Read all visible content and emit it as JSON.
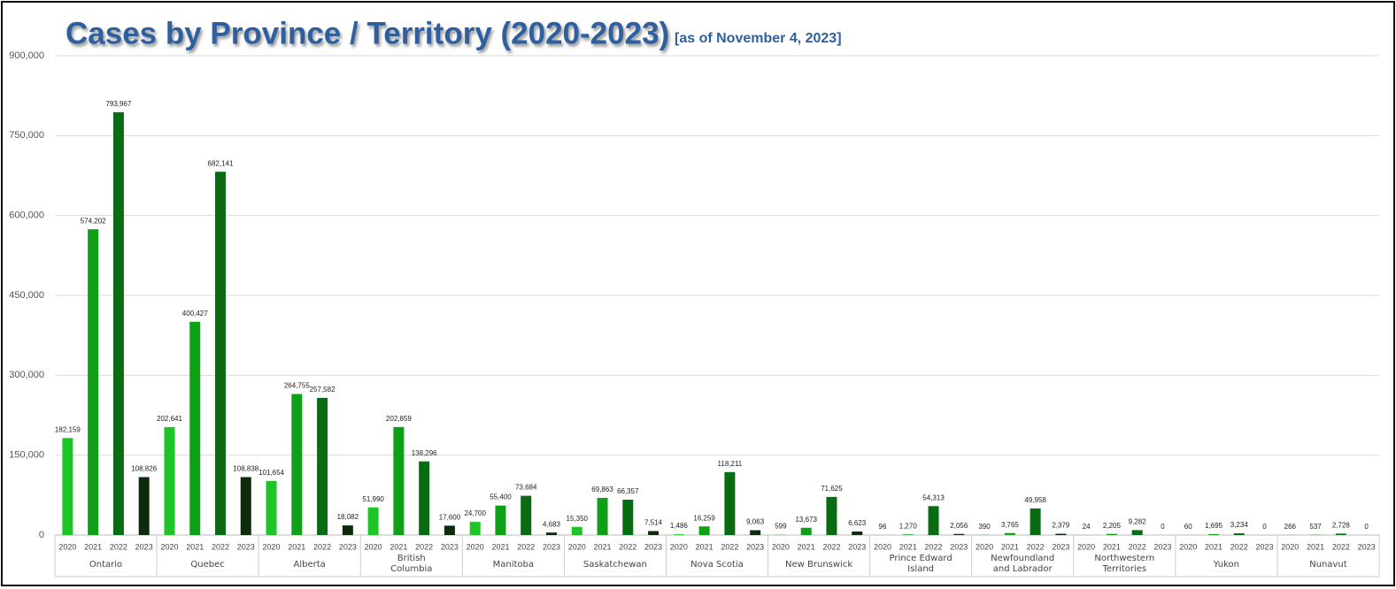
{
  "chart_data": {
    "type": "bar",
    "title": "Cases by Province / Territory (2020-2023)",
    "subtitle": "[as of November 4, 2023]",
    "categories": [
      "Ontario",
      "Quebec",
      "Alberta",
      "British Columbia",
      "Manitoba",
      "Saskatchewan",
      "Nova Scotia",
      "New Brunswick",
      "Prince Edward Island",
      "Newfoundland and Labrador",
      "Northwestern Territories",
      "Yukon",
      "Nunavut"
    ],
    "series": [
      {
        "name": "2020",
        "color": "#1fc428",
        "values": [
          182159,
          202641,
          101654,
          51990,
          24700,
          15350,
          1486,
          599,
          96,
          390,
          24,
          60,
          266
        ],
        "value_labels": [
          "182,159",
          "202,641",
          "101,654",
          "51,990",
          "24,700",
          "15,350",
          "1,486",
          "599",
          "96",
          "390",
          "24",
          "60",
          "266"
        ]
      },
      {
        "name": "2021",
        "color": "#10a018",
        "values": [
          574202,
          400427,
          264755,
          202859,
          55400,
          69863,
          16259,
          13673,
          1270,
          3765,
          2205,
          1695,
          537
        ],
        "value_labels": [
          "574,202",
          "400,427",
          "264,755",
          "202,859",
          "55,400",
          "69,863",
          "16,259",
          "13,673",
          "1,270",
          "3,765",
          "2,205",
          "1,695",
          "537"
        ]
      },
      {
        "name": "2022",
        "color": "#0a6c12",
        "values": [
          793967,
          682141,
          257582,
          138296,
          73684,
          66357,
          118211,
          71625,
          54313,
          49958,
          9282,
          3234,
          2728
        ],
        "value_labels": [
          "793,967",
          "682,141",
          "257,582",
          "138,296",
          "73,684",
          "66,357",
          "118,211",
          "71,625",
          "54,313",
          "49,958",
          "9,282",
          "3,234",
          "2,728"
        ]
      },
      {
        "name": "2023",
        "color": "#0c2b0c",
        "values": [
          108826,
          108838,
          18082,
          17600,
          4683,
          7514,
          9063,
          6623,
          2056,
          2379,
          0,
          0,
          0
        ],
        "value_labels": [
          "108,826",
          "108,838",
          "18,082",
          "17,600",
          "4,683",
          "7,514",
          "9,063",
          "6,623",
          "2,056",
          "2,379",
          "0",
          "0",
          "0"
        ]
      }
    ],
    "ylim": [
      0,
      900000
    ],
    "yticks": [
      0,
      {
        "value": 150000,
        "label": "150,000"
      },
      {
        "value": 300000,
        "label": "300,000"
      },
      {
        "value": 450000,
        "label": "450,000"
      },
      {
        "value": 600000,
        "label": "600,000"
      },
      {
        "value": 750000,
        "label": "750,000"
      },
      {
        "value": 900000,
        "label": "900,000"
      }
    ],
    "grid": true
  }
}
